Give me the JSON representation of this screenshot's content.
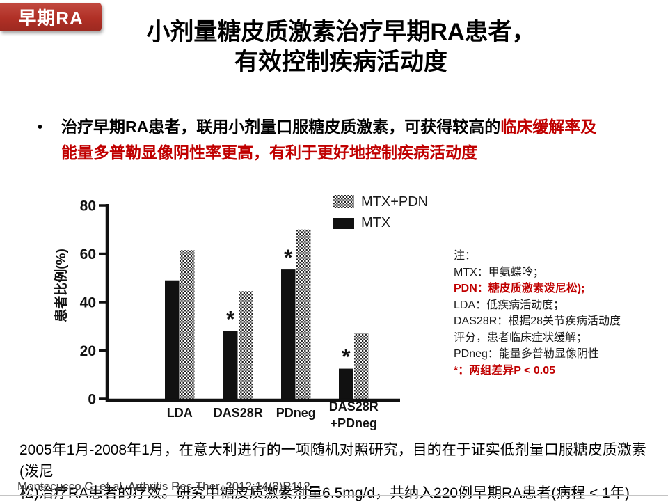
{
  "badge": {
    "label": "早期RA"
  },
  "title": {
    "line1": "小剂量糖皮质激素治疗早期RA患者，",
    "line2": "有效控制疾病活动度"
  },
  "bullet": {
    "marker": "•",
    "black_text": "治疗早期RA患者，联用小剂量口服糖皮质激素，可获得较高的",
    "red_line1": "临床缓解率及",
    "red_line2": "能量多普勒显像阴性率更高，有利于更好地控制疾病活动度"
  },
  "chart_data": {
    "type": "bar",
    "title": "",
    "xlabel": "",
    "ylabel": "患者比例(%)",
    "ylim": [
      0,
      80
    ],
    "yticks": [
      0,
      20,
      40,
      60,
      80
    ],
    "grid": false,
    "legend_position": "top-right",
    "categories": [
      "LDA",
      "DAS28R",
      "PDneg",
      "DAS28R\n+PDneg"
    ],
    "series": [
      {
        "name": "MTX+PDN",
        "style": "checker",
        "color": "#222222",
        "values": [
          61.5,
          44.5,
          70,
          27
        ]
      },
      {
        "name": "MTX",
        "style": "solid",
        "color": "#111111",
        "values": [
          49,
          28,
          53.5,
          12.5
        ]
      }
    ],
    "significance": {
      "symbol": "*",
      "over_series": "MTX",
      "per_category": [
        false,
        true,
        true,
        true
      ]
    }
  },
  "notes": {
    "lines": [
      {
        "text": "注：",
        "red": false
      },
      {
        "text": "MTX：甲氨蝶呤；",
        "red": false
      },
      {
        "text": "PDN：糖皮质激素泼尼松);",
        "red": true
      },
      {
        "text": "LDA：低疾病活动度；",
        "red": false
      },
      {
        "text": "DAS28R：根据28关节疾病活动度",
        "red": false
      },
      {
        "text": "评分，患者临床症状缓解；",
        "red": false
      },
      {
        "text": "PDneg：能量多普勒显像阴性",
        "red": false
      },
      {
        "text": "*：两组差异P < 0.05",
        "red": true
      }
    ]
  },
  "footer": {
    "study_line1": "2005年1月-2008年1月，在意大利进行的一项随机对照研究，目的在于证实低剂量口服糖皮质激素(泼尼",
    "study_line2": "松)治疗RA患者的疗效。研究中糖皮质激素剂量6.5mg/d，共纳入220例早期RA患者(病程 < 1年)",
    "citation": "Montecucco C, et al. Arthritis Res Ther. 2012;14(3)R112"
  },
  "colors": {
    "accent_red": "#c00000",
    "badge_red_top": "#c24a40",
    "badge_red_bottom": "#9c2920",
    "bar_black": "#111111"
  }
}
